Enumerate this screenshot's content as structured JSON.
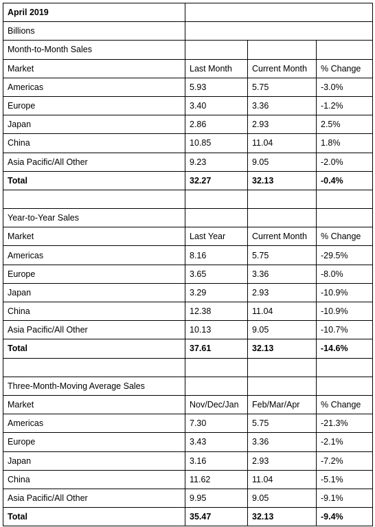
{
  "header": {
    "title": "April 2019",
    "units": "Billions"
  },
  "sections": [
    {
      "title": "Month-to-Month Sales",
      "columns": [
        "Market",
        "Last Month",
        "Current Month",
        "% Change"
      ],
      "rows": [
        [
          "Americas",
          "5.93",
          "5.75",
          "-3.0%"
        ],
        [
          "Europe",
          "3.40",
          "3.36",
          "-1.2%"
        ],
        [
          "Japan",
          "2.86",
          "2.93",
          "2.5%"
        ],
        [
          "China",
          "10.85",
          "11.04",
          "1.8%"
        ],
        [
          "Asia Pacific/All Other",
          "9.23",
          "9.05",
          "-2.0%"
        ]
      ],
      "total": [
        "Total",
        "32.27",
        "32.13",
        "-0.4%"
      ]
    },
    {
      "title": "Year-to-Year Sales",
      "columns": [
        "Market",
        "Last Year",
        "Current Month",
        "% Change"
      ],
      "rows": [
        [
          "Americas",
          "8.16",
          "5.75",
          "-29.5%"
        ],
        [
          "Europe",
          "3.65",
          "3.36",
          "-8.0%"
        ],
        [
          "Japan",
          "3.29",
          "2.93",
          "-10.9%"
        ],
        [
          "China",
          "12.38",
          "11.04",
          "-10.9%"
        ],
        [
          "Asia Pacific/All Other",
          "10.13",
          "9.05",
          "-10.7%"
        ]
      ],
      "total": [
        "Total",
        "37.61",
        "32.13",
        "-14.6%"
      ]
    },
    {
      "title": "Three-Month-Moving Average Sales",
      "columns": [
        "Market",
        "Nov/Dec/Jan",
        "Feb/Mar/Apr",
        "% Change"
      ],
      "rows": [
        [
          "Americas",
          "7.30",
          "5.75",
          "-21.3%"
        ],
        [
          "Europe",
          "3.43",
          "3.36",
          "-2.1%"
        ],
        [
          "Japan",
          "3.16",
          "2.93",
          "-7.2%"
        ],
        [
          "China",
          "11.62",
          "11.04",
          "-5.1%"
        ],
        [
          "Asia Pacific/All Other",
          "9.95",
          "9.05",
          "-9.1%"
        ]
      ],
      "total": [
        "Total",
        "35.47",
        "32.13",
        "-9.4%"
      ]
    }
  ]
}
